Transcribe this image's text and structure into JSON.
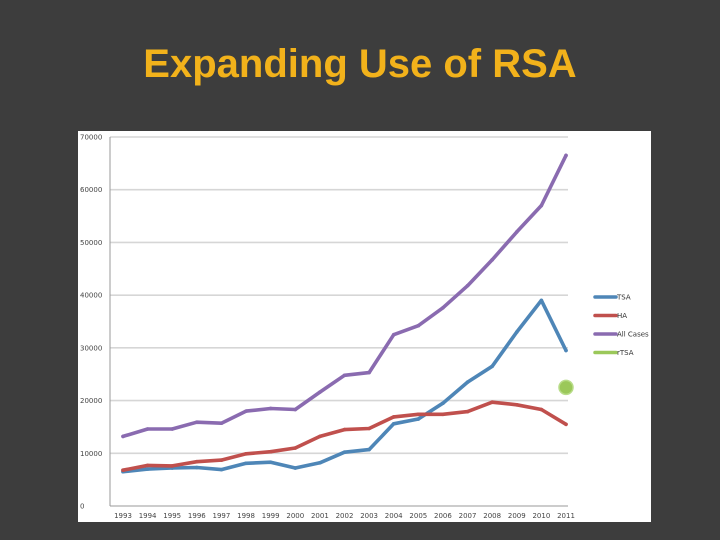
{
  "slide": {
    "title": "Expanding Use of RSA"
  },
  "colors": {
    "background": "#3d3d3d",
    "title": "#f2b21b",
    "plot_bg": "#ffffff",
    "grid": "#d6d6d6"
  },
  "chart_data": {
    "type": "line",
    "title": "",
    "xlabel": "",
    "ylabel": "",
    "ylim": [
      0,
      70000
    ],
    "yticks": [
      0,
      10000,
      20000,
      30000,
      40000,
      50000,
      60000,
      70000
    ],
    "ytick_labels": [
      "0",
      "10000",
      "20000",
      "30000",
      "40000",
      "50000",
      "60000",
      "70000"
    ],
    "categories": [
      "1993",
      "1994",
      "1995",
      "1996",
      "1997",
      "1998",
      "1999",
      "2000",
      "2001",
      "2002",
      "2003",
      "2004",
      "2005",
      "2006",
      "2007",
      "2008",
      "2009",
      "2010",
      "2011"
    ],
    "legend_position": "right",
    "series": [
      {
        "name": "TSA",
        "color": "#4e86b7",
        "kind": "line",
        "values": [
          6500,
          7000,
          7200,
          7300,
          6900,
          8100,
          8300,
          7200,
          8200,
          10200,
          10700,
          15600,
          16500,
          19500,
          23500,
          26500,
          33000,
          39000,
          29500
        ]
      },
      {
        "name": "HA",
        "color": "#c0504d",
        "kind": "line",
        "values": [
          6800,
          7700,
          7600,
          8400,
          8700,
          9900,
          10300,
          11000,
          13200,
          14500,
          14700,
          16900,
          17400,
          17400,
          17900,
          19700,
          19200,
          18300,
          15500
        ]
      },
      {
        "name": "All Cases",
        "color": "#8a6bb0",
        "kind": "line",
        "values": [
          13200,
          14600,
          14600,
          15900,
          15700,
          18000,
          18500,
          18300,
          21600,
          24800,
          25300,
          32500,
          34200,
          37600,
          41800,
          46700,
          52000,
          57000,
          66500
        ]
      },
      {
        "name": "rTSA",
        "color": "#9bc85a",
        "kind": "point",
        "point": {
          "category": "2011",
          "value": 22500
        }
      }
    ]
  }
}
